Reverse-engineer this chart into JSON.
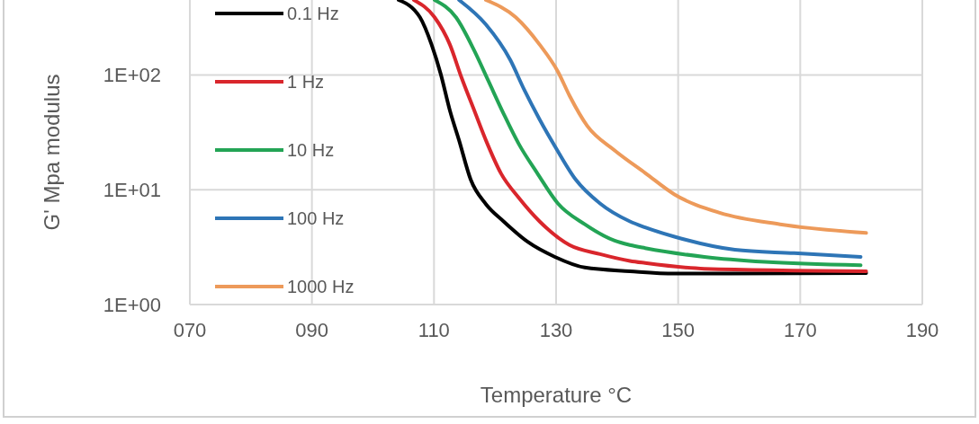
{
  "chart_data": {
    "type": "line",
    "xlabel": "Temperature °C",
    "ylabel": "G' Mpa modulus",
    "xlim": [
      70,
      190
    ],
    "xticks": [
      {
        "value": 70,
        "label": "070"
      },
      {
        "value": 90,
        "label": "090"
      },
      110,
      130,
      150,
      170,
      190
    ],
    "ylim": [
      1,
      450
    ],
    "yticks": [
      {
        "value": 1,
        "label": "1E+00"
      },
      {
        "value": 10,
        "label": "1E+01"
      },
      {
        "value": 100,
        "label": "1E+02"
      }
    ],
    "log": "y",
    "grid": true,
    "legend": "top left",
    "marker": "none",
    "line_style": "solid",
    "series": [
      {
        "name": "0.1 Hz",
        "color": "#000000",
        "x": [
          104.2,
          107.7,
          109.6,
          111.1,
          112.6,
          114.1,
          116.0,
          118.5,
          121.4,
          125.4,
          129.8,
          134.7,
          142.1,
          149.4,
          180.8
        ],
        "values": [
          450,
          318,
          184,
          102,
          49,
          27,
          12.3,
          7.5,
          5.3,
          3.5,
          2.6,
          2.1,
          1.95,
          1.86,
          1.88
        ]
      },
      {
        "name": "1 Hz",
        "color": "#d9262c",
        "x": [
          106.7,
          110.1,
          112.6,
          114.5,
          116.6,
          118.5,
          121.0,
          123.9,
          127.3,
          132.2,
          137.2,
          142.1,
          144.6,
          154.3,
          180.8
        ],
        "values": [
          450,
          318,
          184,
          95,
          49,
          27,
          13.8,
          8.5,
          5.3,
          3.3,
          2.75,
          2.4,
          2.3,
          2.05,
          1.95
        ]
      },
      {
        "name": "10 Hz",
        "color": "#23a455",
        "x": [
          110.1,
          113.6,
          116.6,
          118.9,
          121.4,
          123.9,
          126.9,
          130.3,
          134.7,
          139.6,
          142.1,
          144.6,
          154.3,
          164.2,
          179.9
        ],
        "values": [
          450,
          318,
          163,
          89,
          46,
          25,
          14,
          7.6,
          5.0,
          3.6,
          3.3,
          3.1,
          2.6,
          2.35,
          2.2
        ]
      },
      {
        "name": "100 Hz",
        "color": "#2e75b6",
        "x": [
          114.1,
          118.5,
          122.5,
          124.8,
          127.3,
          129.8,
          133.2,
          137.2,
          142.1,
          144.6,
          149.4,
          159.3,
          169.0,
          179.9
        ],
        "values": [
          450,
          275,
          135,
          74,
          41,
          24,
          12.3,
          7.6,
          5.3,
          4.7,
          3.9,
          3.0,
          2.8,
          2.6
        ]
      },
      {
        "name": "1000 Hz",
        "color": "#ed9a5a",
        "x": [
          118.5,
          123.4,
          127.3,
          130.3,
          132.2,
          135.1,
          139.6,
          144.6,
          149.4,
          156.8,
          166.7,
          180.8
        ],
        "values": [
          450,
          318,
          184,
          107,
          66,
          36,
          22,
          14,
          9.1,
          6.3,
          5.0,
          4.2
        ]
      }
    ]
  }
}
